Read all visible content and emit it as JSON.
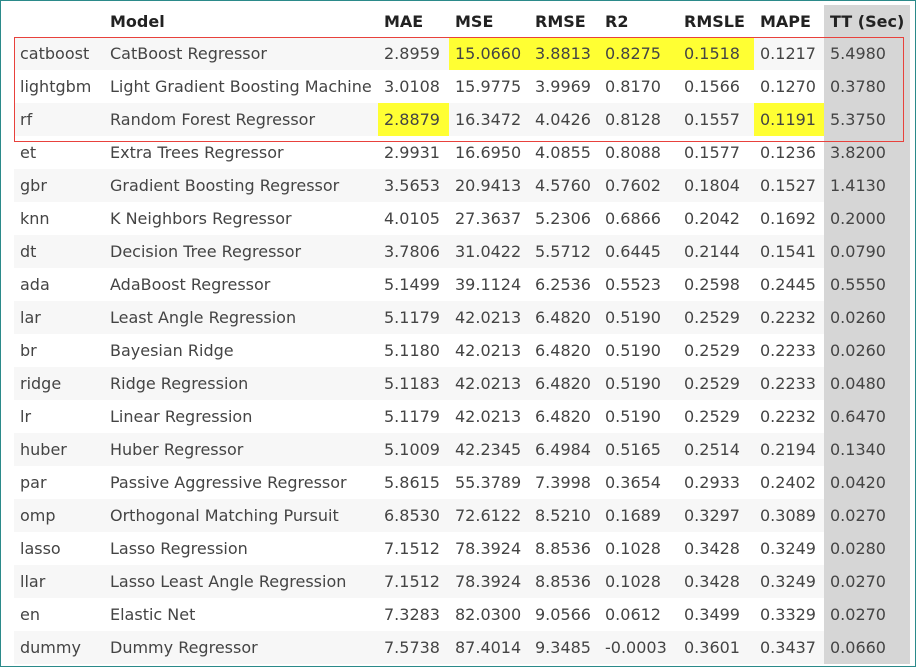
{
  "columns": [
    "",
    "Model",
    "MAE",
    "MSE",
    "RMSE",
    "R2",
    "RMSLE",
    "MAPE",
    "TT (Sec)"
  ],
  "rows": [
    {
      "id": "catboost",
      "model": "CatBoost Regressor",
      "mae": "2.8959",
      "mse": "15.0660",
      "rmse": "3.8813",
      "r2": "0.8275",
      "rmsle": "0.1518",
      "mape": "0.1217",
      "tt": "5.4980",
      "highlight": [
        "mse",
        "rmse",
        "r2",
        "rmsle"
      ]
    },
    {
      "id": "lightgbm",
      "model": "Light Gradient Boosting Machine",
      "mae": "3.0108",
      "mse": "15.9775",
      "rmse": "3.9969",
      "r2": "0.8170",
      "rmsle": "0.1566",
      "mape": "0.1270",
      "tt": "0.3780",
      "highlight": []
    },
    {
      "id": "rf",
      "model": "Random Forest Regressor",
      "mae": "2.8879",
      "mse": "16.3472",
      "rmse": "4.0426",
      "r2": "0.8128",
      "rmsle": "0.1557",
      "mape": "0.1191",
      "tt": "5.3750",
      "highlight": [
        "mae",
        "mape"
      ]
    },
    {
      "id": "et",
      "model": "Extra Trees Regressor",
      "mae": "2.9931",
      "mse": "16.6950",
      "rmse": "4.0855",
      "r2": "0.8088",
      "rmsle": "0.1577",
      "mape": "0.1236",
      "tt": "3.8200",
      "highlight": []
    },
    {
      "id": "gbr",
      "model": "Gradient Boosting Regressor",
      "mae": "3.5653",
      "mse": "20.9413",
      "rmse": "4.5760",
      "r2": "0.7602",
      "rmsle": "0.1804",
      "mape": "0.1527",
      "tt": "1.4130",
      "highlight": []
    },
    {
      "id": "knn",
      "model": "K Neighbors Regressor",
      "mae": "4.0105",
      "mse": "27.3637",
      "rmse": "5.2306",
      "r2": "0.6866",
      "rmsle": "0.2042",
      "mape": "0.1692",
      "tt": "0.2000",
      "highlight": []
    },
    {
      "id": "dt",
      "model": "Decision Tree Regressor",
      "mae": "3.7806",
      "mse": "31.0422",
      "rmse": "5.5712",
      "r2": "0.6445",
      "rmsle": "0.2144",
      "mape": "0.1541",
      "tt": "0.0790",
      "highlight": []
    },
    {
      "id": "ada",
      "model": "AdaBoost Regressor",
      "mae": "5.1499",
      "mse": "39.1124",
      "rmse": "6.2536",
      "r2": "0.5523",
      "rmsle": "0.2598",
      "mape": "0.2445",
      "tt": "0.5550",
      "highlight": []
    },
    {
      "id": "lar",
      "model": "Least Angle Regression",
      "mae": "5.1179",
      "mse": "42.0213",
      "rmse": "6.4820",
      "r2": "0.5190",
      "rmsle": "0.2529",
      "mape": "0.2232",
      "tt": "0.0260",
      "highlight": []
    },
    {
      "id": "br",
      "model": "Bayesian Ridge",
      "mae": "5.1180",
      "mse": "42.0213",
      "rmse": "6.4820",
      "r2": "0.5190",
      "rmsle": "0.2529",
      "mape": "0.2233",
      "tt": "0.0260",
      "highlight": []
    },
    {
      "id": "ridge",
      "model": "Ridge Regression",
      "mae": "5.1183",
      "mse": "42.0213",
      "rmse": "6.4820",
      "r2": "0.5190",
      "rmsle": "0.2529",
      "mape": "0.2233",
      "tt": "0.0480",
      "highlight": []
    },
    {
      "id": "lr",
      "model": "Linear Regression",
      "mae": "5.1179",
      "mse": "42.0213",
      "rmse": "6.4820",
      "r2": "0.5190",
      "rmsle": "0.2529",
      "mape": "0.2232",
      "tt": "0.6470",
      "highlight": []
    },
    {
      "id": "huber",
      "model": "Huber Regressor",
      "mae": "5.1009",
      "mse": "42.2345",
      "rmse": "6.4984",
      "r2": "0.5165",
      "rmsle": "0.2514",
      "mape": "0.2194",
      "tt": "0.1340",
      "highlight": []
    },
    {
      "id": "par",
      "model": "Passive Aggressive Regressor",
      "mae": "5.8615",
      "mse": "55.3789",
      "rmse": "7.3998",
      "r2": "0.3654",
      "rmsle": "0.2933",
      "mape": "0.2402",
      "tt": "0.0420",
      "highlight": []
    },
    {
      "id": "omp",
      "model": "Orthogonal Matching Pursuit",
      "mae": "6.8530",
      "mse": "72.6122",
      "rmse": "8.5210",
      "r2": "0.1689",
      "rmsle": "0.3297",
      "mape": "0.3089",
      "tt": "0.0270",
      "highlight": []
    },
    {
      "id": "lasso",
      "model": "Lasso Regression",
      "mae": "7.1512",
      "mse": "78.3924",
      "rmse": "8.8536",
      "r2": "0.1028",
      "rmsle": "0.3428",
      "mape": "0.3249",
      "tt": "0.0280",
      "highlight": []
    },
    {
      "id": "llar",
      "model": "Lasso Least Angle Regression",
      "mae": "7.1512",
      "mse": "78.3924",
      "rmse": "8.8536",
      "r2": "0.1028",
      "rmsle": "0.3428",
      "mape": "0.3249",
      "tt": "0.0270",
      "highlight": []
    },
    {
      "id": "en",
      "model": "Elastic Net",
      "mae": "7.3283",
      "mse": "82.0300",
      "rmse": "9.0566",
      "r2": "0.0612",
      "rmsle": "0.3499",
      "mape": "0.3329",
      "tt": "0.0270",
      "highlight": []
    },
    {
      "id": "dummy",
      "model": "Dummy Regressor",
      "mae": "7.5738",
      "mse": "87.4014",
      "rmse": "9.3485",
      "r2": "-0.0003",
      "rmsle": "0.3601",
      "mape": "0.3437",
      "tt": "0.0660",
      "highlight": []
    }
  ],
  "colors": {
    "highlight": "#ffff33",
    "tt_column": "#d6d6d6",
    "box_border": "#e8413c",
    "stripe": "#f7f7f7"
  }
}
